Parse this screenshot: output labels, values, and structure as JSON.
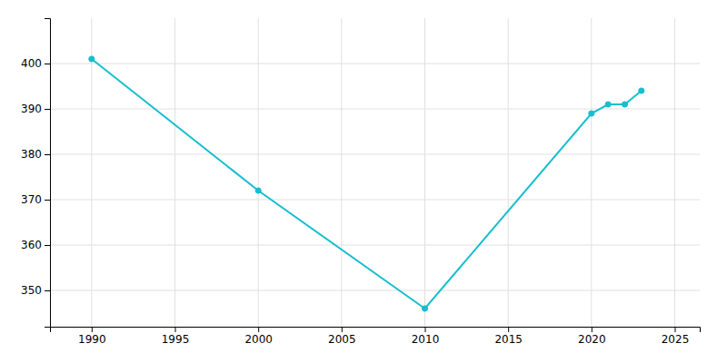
{
  "chart_data": {
    "type": "line",
    "x": [
      1990,
      2000,
      2010,
      2020,
      2021,
      2022,
      2023
    ],
    "values": [
      401,
      372,
      346,
      389,
      391,
      391,
      394
    ],
    "color": "#17BECF",
    "marker": "circle",
    "xlim": [
      1987.5,
      2026.5
    ],
    "ylim": [
      342,
      410
    ],
    "xticks": [
      1990,
      1995,
      2000,
      2005,
      2010,
      2015,
      2020,
      2025
    ],
    "yticks": [
      350,
      360,
      370,
      380,
      390,
      400
    ],
    "grid": true
  }
}
